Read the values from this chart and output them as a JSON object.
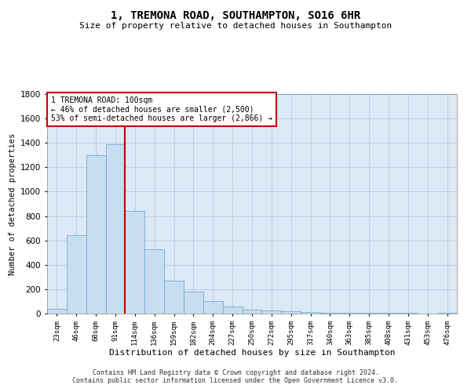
{
  "title": "1, TREMONA ROAD, SOUTHAMPTON, SO16 6HR",
  "subtitle": "Size of property relative to detached houses in Southampton",
  "xlabel": "Distribution of detached houses by size in Southampton",
  "ylabel": "Number of detached properties",
  "footer_line1": "Contains HM Land Registry data © Crown copyright and database right 2024.",
  "footer_line2": "Contains public sector information licensed under the Open Government Licence v3.0.",
  "annotation_line1": "1 TREMONA ROAD: 100sqm",
  "annotation_line2": "← 46% of detached houses are smaller (2,500)",
  "annotation_line3": "53% of semi-detached houses are larger (2,866) →",
  "bar_categories": [
    "23sqm",
    "46sqm",
    "68sqm",
    "91sqm",
    "114sqm",
    "136sqm",
    "159sqm",
    "182sqm",
    "204sqm",
    "227sqm",
    "250sqm",
    "272sqm",
    "295sqm",
    "317sqm",
    "340sqm",
    "363sqm",
    "385sqm",
    "408sqm",
    "431sqm",
    "453sqm",
    "476sqm"
  ],
  "bar_values": [
    40,
    640,
    1300,
    1390,
    840,
    530,
    270,
    180,
    100,
    60,
    30,
    28,
    20,
    10,
    8,
    8,
    8,
    8,
    5,
    3,
    5
  ],
  "bar_color": "#c9ddf0",
  "bar_edge_color": "#6baed6",
  "vline_color": "#cc0000",
  "vline_x": 3.5,
  "grid_color": "#b8c8dc",
  "background_color": "#dce8f5",
  "ylim": [
    0,
    1800
  ],
  "yticks": [
    0,
    200,
    400,
    600,
    800,
    1000,
    1200,
    1400,
    1600,
    1800
  ]
}
